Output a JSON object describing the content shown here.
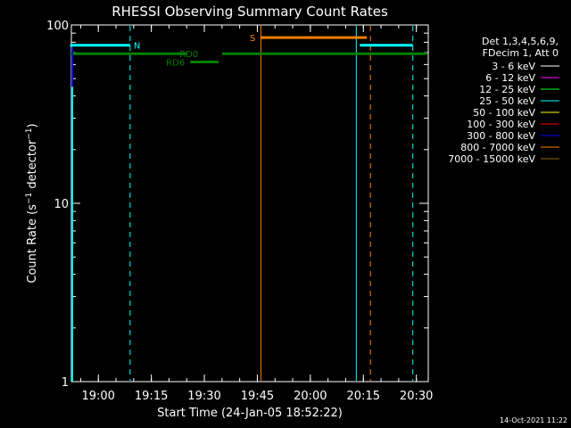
{
  "chart_data": {
    "type": "line",
    "title": "RHESSI Observing Summary Count Rates",
    "xlabel": "Start Time (24-Jan-05 18:52:22)",
    "ylabel_main": "Count Rate (s",
    "ylabel_sup1": "−1",
    "ylabel_mid": " detector",
    "ylabel_sup2": "−1",
    "ylabel_end": ")",
    "y_scale": "log",
    "ylim": [
      1,
      100
    ],
    "xlim_minutes": [
      "18:52",
      "20:33"
    ],
    "x_ticks": [
      "19:00",
      "19:15",
      "19:30",
      "19:45",
      "20:00",
      "20:15",
      "20:30"
    ],
    "y_ticks": [
      "1",
      "10",
      "100"
    ],
    "legend_position": "right",
    "legend_header": [
      "Det 1,3,4,5,6,9,",
      "FDecim 1, Att 0"
    ],
    "legend": [
      {
        "label": "3 - 6 keV",
        "color": "#000000"
      },
      {
        "label": "6 - 12 keV",
        "color": "#ff00ff"
      },
      {
        "label": "12 - 25 keV",
        "color": "#00ff00"
      },
      {
        "label": "25 - 50 keV",
        "color": "#00ffff"
      },
      {
        "label": "50 - 100 keV",
        "color": "#ffff00"
      },
      {
        "label": "100 - 300 keV",
        "color": "#ff0000"
      },
      {
        "label": "300 - 800 keV",
        "color": "#0000ff"
      },
      {
        "label": "800 - 7000 keV",
        "color": "#ff8000"
      },
      {
        "label": "7000 - 15000 keV",
        "color": "#8b6914"
      }
    ],
    "flags": [
      {
        "label": "N",
        "color": "#00ffff",
        "segments": [
          [
            "18:52",
            "19:09"
          ],
          [
            "20:14",
            "20:29"
          ]
        ],
        "level": 77
      },
      {
        "label": "S",
        "color": "#ff8000",
        "segments": [
          [
            "19:46",
            "20:16"
          ]
        ],
        "level": 85
      },
      {
        "label": "RD0",
        "color": "#008000",
        "segments": [
          [
            "18:52",
            "19:25"
          ],
          [
            "19:35",
            "20:33"
          ]
        ],
        "level": 69
      },
      {
        "label": "RD6",
        "color": "#008000",
        "segments": [
          [
            "19:26",
            "19:34"
          ]
        ],
        "level": 62
      }
    ],
    "vertical_lines": [
      {
        "time": "19:09",
        "color": "#00ffff",
        "style": "dashed"
      },
      {
        "time": "19:46",
        "color": "#ff8000",
        "style": "solid"
      },
      {
        "time": "20:13",
        "color": "#00ffff",
        "style": "solid"
      },
      {
        "time": "20:17",
        "color": "#ff8000",
        "style": "dashed"
      },
      {
        "time": "20:29",
        "color": "#00ffff",
        "style": "dashed"
      }
    ],
    "left_edge_segments": [
      {
        "color": "#00ff00",
        "ylim": [
          1.5,
          18
        ]
      },
      {
        "color": "#00ffff",
        "ylim": [
          1,
          70
        ]
      },
      {
        "color": "#0000ff",
        "ylim": [
          45,
          75
        ]
      }
    ]
  },
  "footer": {
    "date": "14-Oct-2021 11:22"
  }
}
